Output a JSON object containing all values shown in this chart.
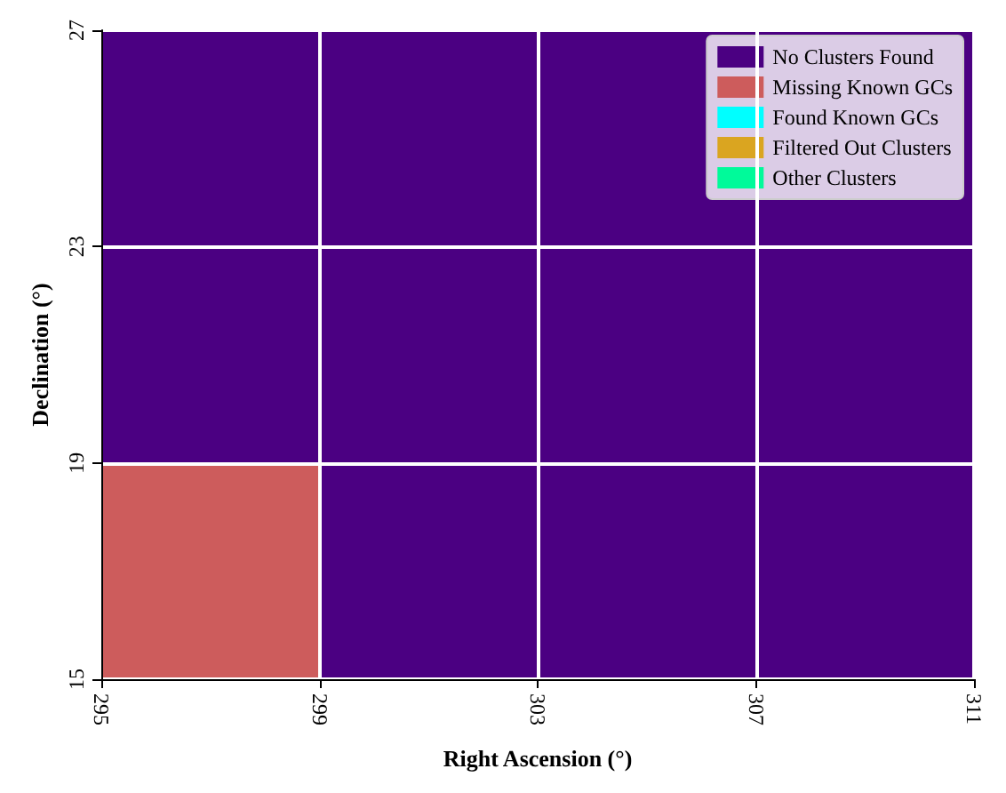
{
  "chart_data": {
    "type": "bar",
    "xlabel": "Right Ascension (°)",
    "ylabel": "Declination (°)",
    "xlim": [
      295,
      311
    ],
    "xticks": [
      295,
      299,
      303,
      307,
      311
    ],
    "ylim": [
      15,
      27
    ],
    "yticks": [
      15,
      19,
      23,
      27
    ],
    "series": [
      {
        "name": "No Clusters Found",
        "color": "#4b0082",
        "x": [
          297,
          301,
          305,
          309
        ],
        "base": [
          19,
          15,
          15,
          15
        ],
        "values": [
          8,
          12,
          12,
          12
        ]
      },
      {
        "name": "Missing Known GCs",
        "color": "#cd5c5c",
        "x": [
          297
        ],
        "base": [
          15
        ],
        "values": [
          4
        ]
      },
      {
        "name": "Found Known GCs",
        "color": "#00ffff"
      },
      {
        "name": "Filtered Out Clusters",
        "color": "#daa520"
      },
      {
        "name": "Other Clusters",
        "color": "#00fa9a"
      }
    ],
    "grid": true,
    "legend": "top right"
  }
}
